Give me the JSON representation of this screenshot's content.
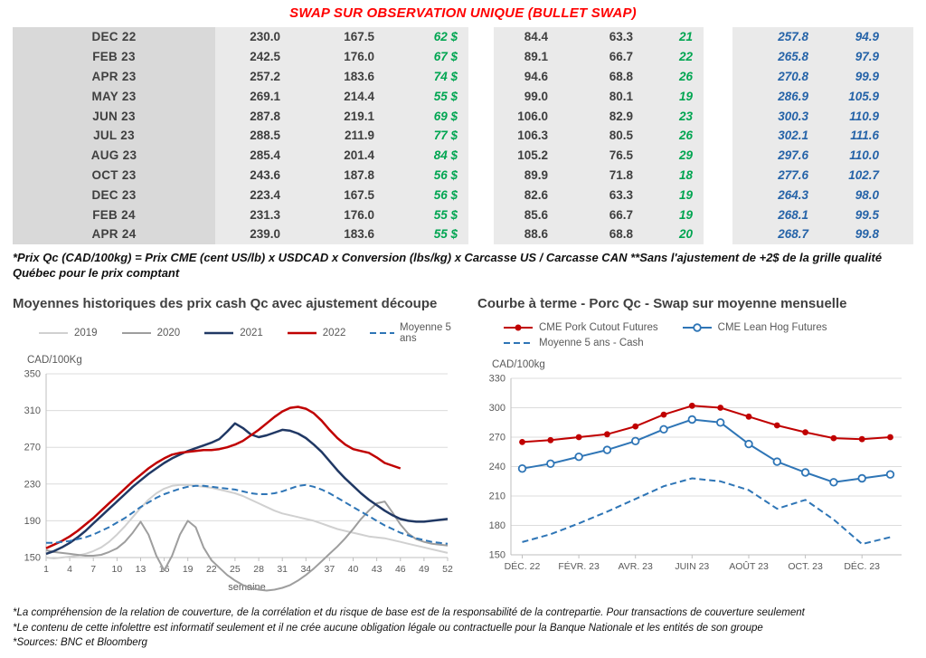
{
  "title": "SWAP SUR OBSERVATION UNIQUE (BULLET SWAP)",
  "colors": {
    "title_red": "#ff0000",
    "green_value": "#00a551",
    "blue_value": "#2563a8",
    "navy_2021": "#203864",
    "red_2022": "#c00000",
    "steel_blue": "#2e75b6",
    "gray_2019": "#d0d0d0",
    "gray_2020": "#9e9e9e"
  },
  "table": {
    "col_classes": [
      "month",
      "num",
      "num",
      "green",
      "num",
      "num",
      "green",
      "blue",
      "blue last"
    ],
    "rows": [
      [
        "DEC 22",
        "230.0",
        "167.5",
        "62 $",
        "84.4",
        "63.3",
        "21",
        "257.8",
        "94.9"
      ],
      [
        "FEB 23",
        "242.5",
        "176.0",
        "67 $",
        "89.1",
        "66.7",
        "22",
        "265.8",
        "97.9"
      ],
      [
        "APR 23",
        "257.2",
        "183.6",
        "74 $",
        "94.6",
        "68.8",
        "26",
        "270.8",
        "99.9"
      ],
      [
        "MAY 23",
        "269.1",
        "214.4",
        "55 $",
        "99.0",
        "80.1",
        "19",
        "286.9",
        "105.9"
      ],
      [
        "JUN 23",
        "287.8",
        "219.1",
        "69 $",
        "106.0",
        "82.9",
        "23",
        "300.3",
        "110.9"
      ],
      [
        "JUL 23",
        "288.5",
        "211.9",
        "77 $",
        "106.3",
        "80.5",
        "26",
        "302.1",
        "111.6"
      ],
      [
        "AUG 23",
        "285.4",
        "201.4",
        "84 $",
        "105.2",
        "76.5",
        "29",
        "297.6",
        "110.0"
      ],
      [
        "OCT 23",
        "243.6",
        "187.8",
        "56 $",
        "89.9",
        "71.8",
        "18",
        "277.6",
        "102.7"
      ],
      [
        "DEC 23",
        "223.4",
        "167.5",
        "56 $",
        "82.6",
        "63.3",
        "19",
        "264.3",
        "98.0"
      ],
      [
        "FEB 24",
        "231.3",
        "176.0",
        "55 $",
        "85.6",
        "66.7",
        "19",
        "268.1",
        "99.5"
      ],
      [
        "APR 24",
        "239.0",
        "183.6",
        "55 $",
        "88.6",
        "68.8",
        "20",
        "268.7",
        "99.8"
      ]
    ]
  },
  "table_footnote": "*Prix Qc (CAD/100kg) = Prix CME (cent US/lb) x USDCAD x Conversion (lbs/kg) x Carcasse US / Carcasse CAN **Sans l'ajustement de +2$ de la grille qualité Québec pour le prix comptant",
  "footnotes": [
    "*La compréhension de la relation de couverture, de la corrélation et du risque de base est de la responsabilité de la contrepartie. Pour transactions de couverture seulement",
    "*Le contenu de cette infolettre est informatif seulement et il ne crée aucune obligation légale ou contractuelle pour la Banque Nationale et les entités de son groupe",
    "*Sources: BNC et Bloomberg"
  ],
  "chart_data": [
    {
      "type": "line",
      "title": "Moyennes historiques des prix cash Qc avec ajustement découpe",
      "ylabel": "CAD/100Kg",
      "xlabel": "semaine",
      "ylim": [
        150,
        350
      ],
      "ytick_step": 40,
      "x_range": [
        1,
        52
      ],
      "xticks": [
        1,
        4,
        7,
        10,
        13,
        16,
        19,
        22,
        25,
        28,
        31,
        34,
        37,
        40,
        43,
        46,
        49,
        52
      ],
      "legend_rows": [
        [
          0,
          1,
          2,
          3,
          4
        ]
      ],
      "series": [
        {
          "name": "2019",
          "color": "#d0d0d0",
          "width": 2,
          "dash": null,
          "marker": null,
          "x_start": 1,
          "values": [
            150,
            149,
            150,
            151,
            152,
            154,
            157,
            161,
            167,
            175,
            184,
            194,
            204,
            213,
            220,
            225,
            228,
            229,
            229,
            228,
            227,
            226,
            224,
            222,
            220,
            217,
            213,
            209,
            205,
            201,
            198,
            196,
            194,
            192,
            190,
            187,
            184,
            181,
            179,
            177,
            175,
            173,
            172,
            171,
            169,
            167,
            165,
            163,
            161,
            159,
            157,
            155
          ]
        },
        {
          "name": "2020",
          "color": "#9e9e9e",
          "width": 2,
          "dash": null,
          "marker": null,
          "x_start": 1,
          "values": [
            158,
            156,
            155,
            154,
            153,
            152,
            152,
            153,
            156,
            160,
            167,
            177,
            189,
            175,
            152,
            136,
            152,
            175,
            190,
            183,
            161,
            147,
            139,
            131,
            125,
            120,
            117,
            115,
            114,
            115,
            117,
            120,
            125,
            131,
            138,
            146,
            154,
            162,
            171,
            181,
            192,
            201,
            209,
            211,
            199,
            186,
            176,
            170,
            167,
            165,
            164,
            163
          ]
        },
        {
          "name": "2021",
          "color": "#203864",
          "width": 2.5,
          "dash": null,
          "marker": null,
          "x_start": 1,
          "values": [
            154,
            157,
            161,
            166,
            172,
            179,
            187,
            195,
            203,
            211,
            219,
            227,
            234,
            241,
            247,
            253,
            258,
            262,
            266,
            269,
            272,
            275,
            279,
            287,
            296,
            291,
            284,
            281,
            283,
            286,
            289,
            288,
            285,
            280,
            273,
            265,
            255,
            245,
            236,
            228,
            220,
            213,
            207,
            201,
            196,
            192,
            190,
            189,
            189,
            190,
            191,
            192
          ]
        },
        {
          "name": "2022",
          "color": "#c00000",
          "width": 2.5,
          "dash": null,
          "marker": null,
          "x_start": 1,
          "values": [
            160,
            164,
            168,
            173,
            179,
            186,
            193,
            201,
            209,
            217,
            225,
            233,
            240,
            247,
            253,
            258,
            262,
            264,
            265,
            266,
            267,
            267,
            268,
            270,
            273,
            277,
            283,
            289,
            296,
            303,
            309,
            313,
            314,
            312,
            307,
            299,
            289,
            280,
            273,
            268,
            266,
            264,
            259,
            253,
            250,
            247
          ]
        },
        {
          "name": "Moyenne 5 ans",
          "color": "#2e75b6",
          "width": 2,
          "dash": "7 4",
          "marker": null,
          "x_start": 1,
          "values": [
            166,
            166,
            167,
            168,
            170,
            172,
            175,
            179,
            183,
            188,
            193,
            199,
            205,
            210,
            215,
            219,
            222,
            225,
            227,
            228,
            228,
            227,
            226,
            225,
            224,
            222,
            220,
            219,
            219,
            220,
            222,
            225,
            228,
            229,
            227,
            224,
            220,
            215,
            210,
            205,
            200,
            195,
            190,
            185,
            181,
            177,
            174,
            171,
            169,
            167,
            166,
            165
          ]
        }
      ]
    },
    {
      "type": "line",
      "title": "Courbe à terme - Porc Qc - Swap sur moyenne mensuelle",
      "ylabel": "CAD/100kg",
      "xlabel": "",
      "ylim": [
        150,
        330
      ],
      "ytick_step": 30,
      "x_range": [
        -0.4,
        13.4
      ],
      "xticks": [
        0,
        2,
        4,
        6,
        8,
        10,
        12
      ],
      "xtick_labels": [
        "DÉC. 22",
        "FÉVR. 23",
        "AVR. 23",
        "JUIN 23",
        "AOÛT 23",
        "OCT. 23",
        "DÉC. 23"
      ],
      "legend_rows": [
        [
          0,
          1
        ],
        [
          2
        ]
      ],
      "series": [
        {
          "name": "CME Pork Cutout Futures",
          "color": "#c00000",
          "width": 2,
          "dash": null,
          "marker": "filled",
          "x_start": 0,
          "values": [
            265,
            267,
            270,
            273,
            281,
            293,
            302,
            300,
            291,
            282,
            275,
            269,
            268,
            270
          ]
        },
        {
          "name": "CME Lean Hog Futures",
          "color": "#2e75b6",
          "width": 2,
          "dash": null,
          "marker": "open",
          "x_start": 0,
          "values": [
            238,
            243,
            250,
            257,
            266,
            278,
            288,
            285,
            263,
            245,
            234,
            224,
            228,
            232
          ]
        },
        {
          "name": "Moyenne 5 ans - Cash",
          "color": "#2e75b6",
          "width": 2,
          "dash": "7 4",
          "marker": null,
          "x_start": 0,
          "values": [
            163,
            171,
            182,
            194,
            207,
            220,
            228,
            225,
            216,
            197,
            206,
            186,
            161,
            168
          ]
        }
      ]
    }
  ]
}
